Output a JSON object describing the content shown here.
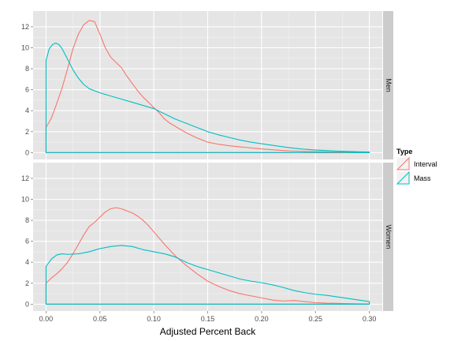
{
  "chart_data": {
    "type": "line",
    "xlabel": "Adjusted Percent Back",
    "ylabel": "",
    "xlim": [
      -0.012,
      0.312
    ],
    "ylim": [
      -0.65,
      13.5
    ],
    "x_ticks": [
      0.0,
      0.05,
      0.1,
      0.15,
      0.2,
      0.25,
      0.3
    ],
    "x_tick_labels": [
      "0.00",
      "0.05",
      "0.10",
      "0.15",
      "0.20",
      "0.25",
      "0.30"
    ],
    "y_ticks": [
      0,
      2,
      4,
      6,
      8,
      10,
      12
    ],
    "y_tick_labels": [
      "0",
      "2",
      "4",
      "6",
      "8",
      "10",
      "12"
    ],
    "grid": true,
    "legend": {
      "title": "Type",
      "position": "right",
      "items": [
        {
          "label": "Interval",
          "color": "#F8766D"
        },
        {
          "label": "Mass",
          "color": "#00BFC4"
        }
      ]
    },
    "panels": [
      {
        "label": "Men",
        "series": [
          {
            "name": "Interval",
            "color": "#F8766D",
            "x": [
              0,
              0.005,
              0.01,
              0.015,
              0.02,
              0.025,
              0.03,
              0.035,
              0.04,
              0.045,
              0.05,
              0.055,
              0.06,
              0.065,
              0.07,
              0.075,
              0.08,
              0.085,
              0.09,
              0.095,
              0.1,
              0.105,
              0.11,
              0.115,
              0.12,
              0.13,
              0.14,
              0.15,
              0.16,
              0.17,
              0.18,
              0.19,
              0.2,
              0.21,
              0.22,
              0.23,
              0.24,
              0.25,
              0.26,
              0.27,
              0.28,
              0.29,
              0.3
            ],
            "values": [
              2.4,
              3.3,
              4.7,
              6.2,
              8.0,
              9.9,
              11.3,
              12.2,
              12.6,
              12.5,
              11.3,
              10.0,
              9.1,
              8.6,
              8.1,
              7.3,
              6.6,
              5.9,
              5.3,
              4.8,
              4.3,
              3.8,
              3.2,
              2.8,
              2.5,
              1.9,
              1.4,
              1.0,
              0.8,
              0.65,
              0.55,
              0.45,
              0.35,
              0.28,
              0.2,
              0.15,
              0.12,
              0.1,
              0.08,
              0.06,
              0.05,
              0.04,
              0.03
            ]
          },
          {
            "name": "Mass",
            "color": "#00BFC4",
            "x": [
              0,
              0.003,
              0.006,
              0.009,
              0.012,
              0.015,
              0.02,
              0.025,
              0.03,
              0.035,
              0.04,
              0.05,
              0.06,
              0.07,
              0.08,
              0.09,
              0.1,
              0.11,
              0.12,
              0.13,
              0.14,
              0.15,
              0.16,
              0.17,
              0.18,
              0.19,
              0.2,
              0.21,
              0.22,
              0.23,
              0.24,
              0.25,
              0.26,
              0.27,
              0.28,
              0.29,
              0.3
            ],
            "values": [
              8.8,
              9.9,
              10.3,
              10.45,
              10.3,
              9.9,
              8.9,
              7.9,
              7.1,
              6.5,
              6.1,
              5.7,
              5.4,
              5.1,
              4.8,
              4.5,
              4.2,
              3.7,
              3.2,
              2.8,
              2.4,
              2.0,
              1.7,
              1.45,
              1.2,
              1.0,
              0.85,
              0.7,
              0.55,
              0.42,
              0.32,
              0.25,
              0.2,
              0.15,
              0.12,
              0.08,
              0.06
            ]
          }
        ]
      },
      {
        "label": "Women",
        "series": [
          {
            "name": "Interval",
            "color": "#F8766D",
            "x": [
              0,
              0.005,
              0.01,
              0.015,
              0.02,
              0.025,
              0.03,
              0.035,
              0.04,
              0.045,
              0.05,
              0.055,
              0.06,
              0.065,
              0.07,
              0.075,
              0.08,
              0.085,
              0.09,
              0.095,
              0.1,
              0.11,
              0.12,
              0.13,
              0.14,
              0.15,
              0.16,
              0.17,
              0.18,
              0.19,
              0.2,
              0.21,
              0.22,
              0.23,
              0.24,
              0.25,
              0.26,
              0.27,
              0.28,
              0.29,
              0.3
            ],
            "values": [
              2.0,
              2.5,
              2.9,
              3.4,
              4.0,
              4.8,
              5.7,
              6.6,
              7.4,
              7.8,
              8.3,
              8.8,
              9.1,
              9.2,
              9.1,
              8.9,
              8.7,
              8.4,
              8.0,
              7.5,
              6.9,
              5.7,
              4.6,
              3.7,
              2.9,
              2.2,
              1.7,
              1.3,
              1.0,
              0.8,
              0.6,
              0.4,
              0.3,
              0.35,
              0.25,
              0.15,
              0.1,
              0.08,
              0.05,
              0.03,
              0.02
            ]
          },
          {
            "name": "Mass",
            "color": "#00BFC4",
            "x": [
              0,
              0.005,
              0.01,
              0.015,
              0.02,
              0.03,
              0.04,
              0.05,
              0.06,
              0.07,
              0.08,
              0.09,
              0.1,
              0.11,
              0.12,
              0.13,
              0.14,
              0.15,
              0.16,
              0.17,
              0.18,
              0.19,
              0.2,
              0.21,
              0.22,
              0.23,
              0.24,
              0.25,
              0.26,
              0.27,
              0.28,
              0.29,
              0.3
            ],
            "values": [
              3.6,
              4.3,
              4.7,
              4.8,
              4.75,
              4.8,
              5.0,
              5.3,
              5.5,
              5.6,
              5.5,
              5.2,
              5.0,
              4.8,
              4.5,
              4.0,
              3.6,
              3.3,
              3.0,
              2.7,
              2.4,
              2.2,
              2.05,
              1.85,
              1.6,
              1.3,
              1.1,
              0.95,
              0.85,
              0.7,
              0.55,
              0.4,
              0.25
            ]
          }
        ]
      }
    ]
  }
}
